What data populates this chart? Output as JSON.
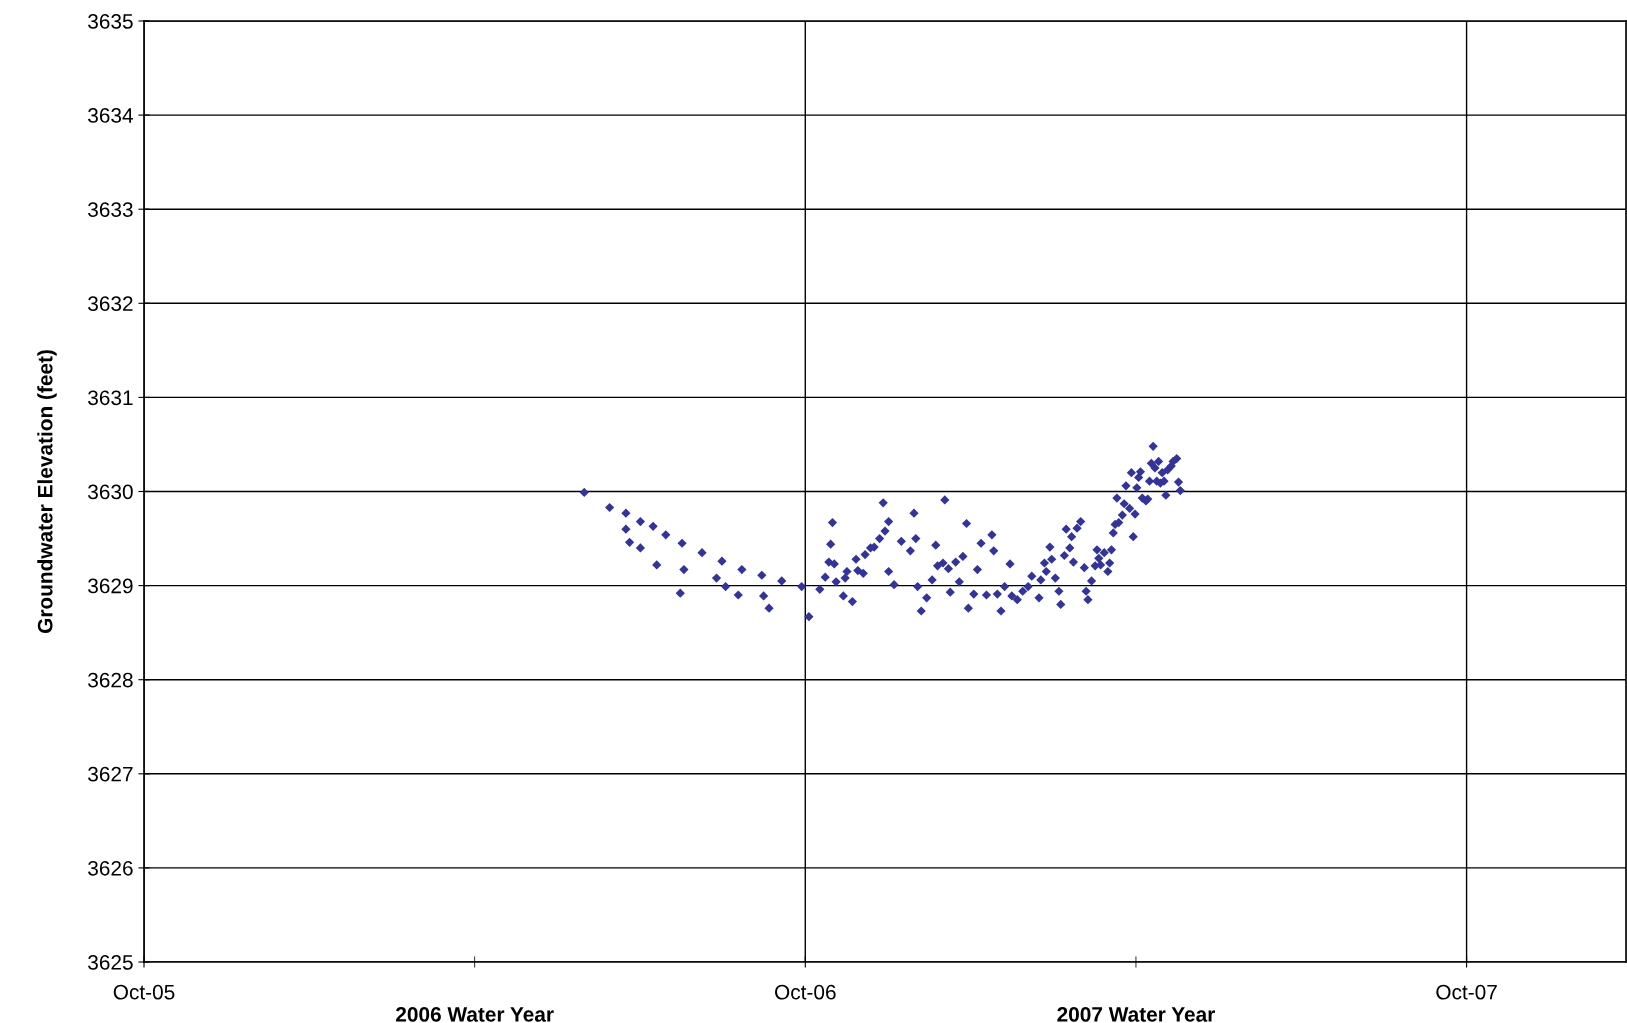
{
  "chart_data": {
    "type": "scatter",
    "ylabel": "Groundwater Elevation (feet)",
    "annotations": [
      "2006 Water Year",
      "2007 Water Year"
    ],
    "xlim": [
      "2005-10-01",
      "2007-12-28"
    ],
    "xticks": [
      {
        "value": "2005-10-01",
        "label": "Oct-05"
      },
      {
        "value": "2006-10-01",
        "label": "Oct-06"
      },
      {
        "value": "2007-10-01",
        "label": "Oct-07"
      }
    ],
    "ylim": [
      3625,
      3635
    ],
    "yticks": [
      3625,
      3626,
      3627,
      3628,
      3629,
      3630,
      3631,
      3632,
      3633,
      3634,
      3635
    ],
    "grid": true,
    "marker": "diamond",
    "series": [
      {
        "color": "#333399",
        "x": [
          "2006-06-01",
          "2006-06-15",
          "2006-06-24",
          "2006-07-02",
          "2006-07-09",
          "2006-07-16",
          "2006-07-25",
          "2006-08-05",
          "2006-08-16",
          "2006-08-27",
          "2006-09-07",
          "2006-09-18",
          "2006-09-29",
          "2006-10-09",
          "2006-06-24",
          "2006-06-26",
          "2006-07-02",
          "2006-07-11",
          "2006-07-24",
          "2006-07-26",
          "2006-08-13",
          "2006-08-18",
          "2006-08-25",
          "2006-09-08",
          "2006-09-11",
          "2006-10-03",
          "2006-10-12",
          "2006-10-14",
          "2006-10-15",
          "2006-10-16",
          "2006-10-17",
          "2006-10-18",
          "2006-10-22",
          "2006-10-23",
          "2006-10-24",
          "2006-10-27",
          "2006-10-29",
          "2006-10-30",
          "2006-11-02",
          "2006-11-03",
          "2006-11-06",
          "2006-11-08",
          "2006-11-11",
          "2006-11-13",
          "2006-11-14",
          "2006-11-16",
          "2006-11-16",
          "2006-11-19",
          "2006-11-23",
          "2006-11-28",
          "2006-11-30",
          "2006-12-01",
          "2006-12-02",
          "2006-12-04",
          "2006-12-07",
          "2006-12-10",
          "2006-12-12",
          "2006-12-13",
          "2006-12-16",
          "2006-12-17",
          "2006-12-19",
          "2006-12-20",
          "2006-12-23",
          "2006-12-25",
          "2006-12-27",
          "2006-12-29",
          "2006-12-30",
          "2007-01-02",
          "2007-01-04",
          "2007-01-06",
          "2007-01-09",
          "2007-01-12",
          "2007-01-13",
          "2007-01-15",
          "2007-01-17",
          "2007-01-19",
          "2007-01-22",
          "2007-01-23",
          "2007-01-26",
          "2007-01-29",
          "2007-02-01",
          "2007-02-03",
          "2007-02-07",
          "2007-02-08",
          "2007-02-10",
          "2007-02-11",
          "2007-02-13",
          "2007-02-14",
          "2007-02-16",
          "2007-02-18",
          "2007-02-19",
          "2007-02-21",
          "2007-02-22",
          "2007-02-24",
          "2007-02-25",
          "2007-02-26",
          "2007-02-28",
          "2007-03-02",
          "2007-03-04",
          "2007-03-05",
          "2007-03-06",
          "2007-03-08",
          "2007-03-10",
          "2007-03-11",
          "2007-03-12",
          "2007-03-13",
          "2007-03-15",
          "2007-03-17",
          "2007-03-18",
          "2007-03-19",
          "2007-03-20",
          "2007-03-21",
          "2007-03-22",
          "2007-03-23",
          "2007-03-25",
          "2007-03-26",
          "2007-03-27",
          "2007-03-29",
          "2007-03-30",
          "2007-03-31",
          "2007-04-01",
          "2007-04-02",
          "2007-04-03",
          "2007-04-04",
          "2007-04-05",
          "2007-04-07",
          "2007-04-08",
          "2007-04-09",
          "2007-04-10",
          "2007-04-11",
          "2007-04-12",
          "2007-04-13",
          "2007-04-14",
          "2007-04-15",
          "2007-04-16",
          "2007-04-17",
          "2007-04-18",
          "2007-04-19",
          "2007-04-21",
          "2007-04-22",
          "2007-04-24",
          "2007-04-25",
          "2007-04-26"
        ],
        "values": [
          3629.99,
          3629.83,
          3629.77,
          3629.68,
          3629.63,
          3629.54,
          3629.45,
          3629.35,
          3629.26,
          3629.17,
          3629.11,
          3629.05,
          3628.99,
          3628.96,
          3629.6,
          3629.46,
          3629.4,
          3629.22,
          3628.92,
          3629.17,
          3629.08,
          3628.99,
          3628.9,
          3628.89,
          3628.76,
          3628.67,
          3629.09,
          3629.25,
          3629.44,
          3629.67,
          3629.23,
          3629.04,
          3628.89,
          3629.08,
          3629.15,
          3628.83,
          3629.28,
          3629.16,
          3629.13,
          3629.33,
          3629.4,
          3629.41,
          3629.5,
          3629.88,
          3629.58,
          3629.68,
          3629.15,
          3629.01,
          3629.47,
          3629.37,
          3629.77,
          3629.5,
          3628.99,
          3628.73,
          3628.87,
          3629.06,
          3629.43,
          3629.21,
          3629.24,
          3629.91,
          3629.18,
          3628.93,
          3629.25,
          3629.04,
          3629.31,
          3629.66,
          3628.76,
          3628.91,
          3629.17,
          3629.45,
          3628.9,
          3629.54,
          3629.37,
          3628.91,
          3628.73,
          3628.99,
          3629.23,
          3628.89,
          3628.85,
          3628.94,
          3628.99,
          3629.1,
          3628.87,
          3629.06,
          3629.24,
          3629.15,
          3629.41,
          3629.28,
          3629.08,
          3628.94,
          3628.8,
          3629.32,
          3629.6,
          3629.4,
          3629.52,
          3629.25,
          3629.61,
          3629.68,
          3629.19,
          3628.94,
          3628.85,
          3629.05,
          3629.21,
          3629.38,
          3629.29,
          3629.22,
          3629.35,
          3629.15,
          3629.24,
          3629.38,
          3629.56,
          3629.65,
          3629.93,
          3629.67,
          3629.75,
          3629.87,
          3630.06,
          3629.82,
          3630.2,
          3629.52,
          3629.76,
          3630.04,
          3630.15,
          3630.21,
          3629.93,
          3629.9,
          3629.92,
          3630.11,
          3630.3,
          3630.48,
          3630.25,
          3630.11,
          3630.32,
          3630.09,
          3630.2,
          3630.11,
          3629.96,
          3630.23,
          3630.27,
          3630.32,
          3630.35,
          3630.1,
          3630.01
        ]
      }
    ]
  }
}
